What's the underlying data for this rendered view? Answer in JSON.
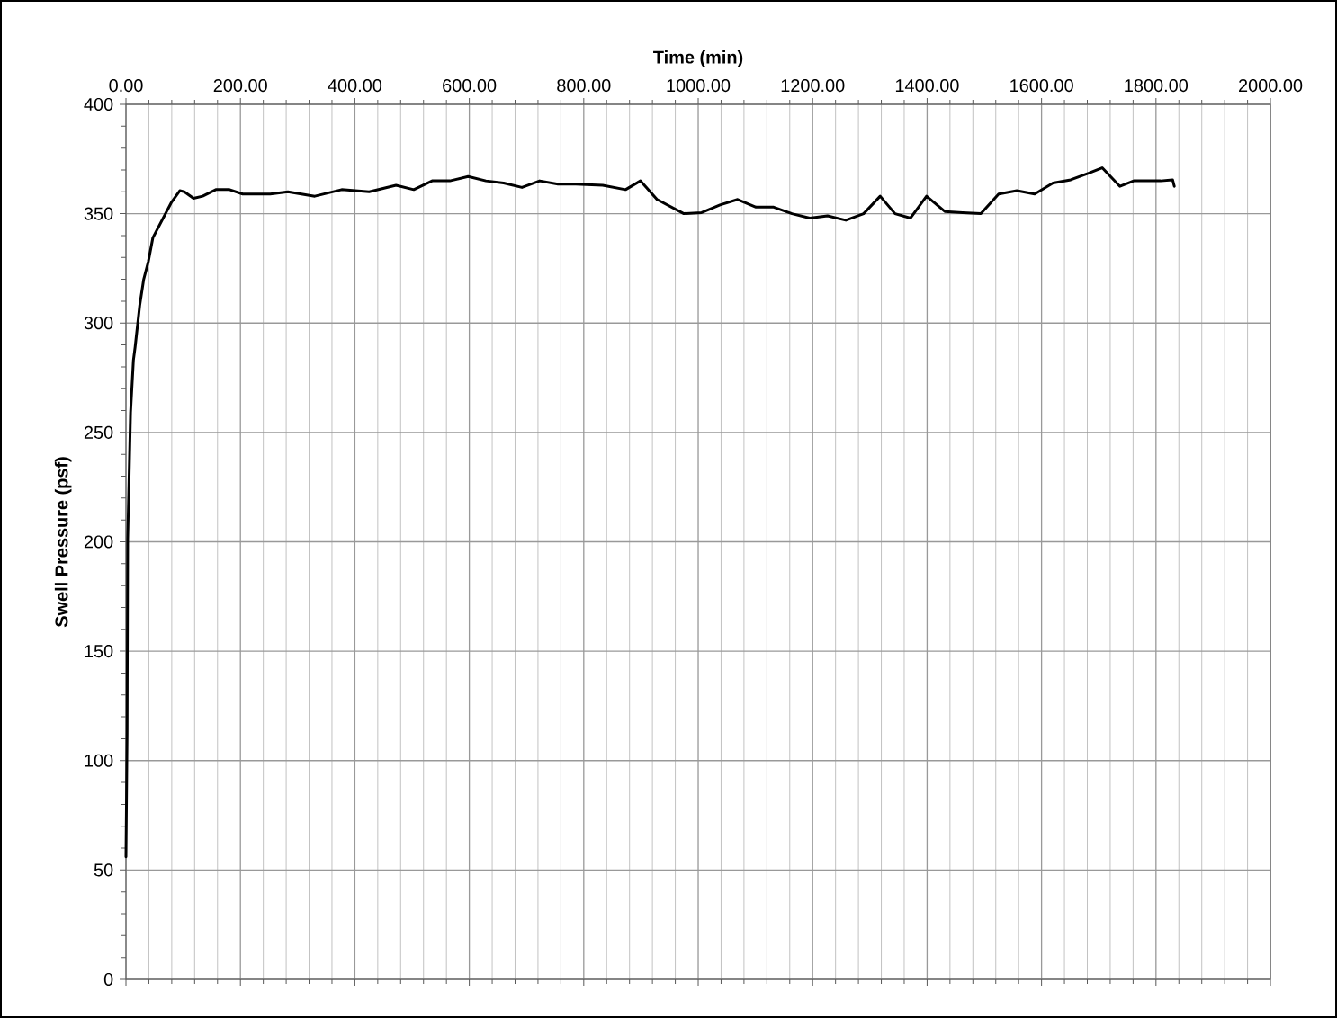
{
  "chart_data": {
    "type": "line",
    "xlabel": "Time (min)",
    "ylabel": "Swell Pressure (psf)",
    "x": [
      0,
      2,
      3,
      8,
      13,
      16,
      24,
      31,
      39,
      47,
      63,
      79,
      94,
      102,
      118,
      134,
      157,
      181,
      204,
      252,
      283,
      330,
      377,
      425,
      472,
      503,
      535,
      566,
      598,
      629,
      660,
      692,
      723,
      755,
      786,
      833,
      873,
      899,
      928,
      975,
      1006,
      1038,
      1069,
      1101,
      1132,
      1164,
      1195,
      1226,
      1258,
      1289,
      1318,
      1344,
      1371,
      1399,
      1431,
      1462,
      1494,
      1525,
      1557,
      1588,
      1620,
      1651,
      1682,
      1706,
      1737,
      1761,
      1808,
      1829,
      1832
    ],
    "series": [
      {
        "color": "#000000",
        "values": [
          56,
          113,
          201,
          259,
          283,
          289,
          308,
          320,
          328,
          339,
          347,
          355,
          360.5,
          360,
          357,
          358,
          361,
          361,
          359,
          359,
          360,
          358,
          361,
          360,
          363,
          361,
          365,
          365,
          367,
          365,
          364,
          362,
          365,
          363.5,
          363.5,
          363,
          361,
          365,
          356.5,
          350,
          350.5,
          354,
          356.5,
          353,
          353,
          350,
          348,
          349,
          347,
          350,
          358,
          350,
          348,
          358,
          351,
          350.5,
          350,
          359,
          360.5,
          359,
          364,
          365.5,
          368.5,
          371,
          362.5,
          365,
          365,
          365.5,
          362.5
        ]
      }
    ],
    "xlim": [
      0,
      2000
    ],
    "xticks": [
      {
        "value": 0,
        "label": "0.00"
      },
      {
        "value": 200,
        "label": "200.00"
      },
      {
        "value": 400,
        "label": "400.00"
      },
      {
        "value": 600,
        "label": "600.00"
      },
      {
        "value": 800,
        "label": "800.00"
      },
      {
        "value": 1000,
        "label": "1000.00"
      },
      {
        "value": 1200,
        "label": "1200.00"
      },
      {
        "value": 1400,
        "label": "1400.00"
      },
      {
        "value": 1600,
        "label": "1600.00"
      },
      {
        "value": 1800,
        "label": "1800.00"
      },
      {
        "value": 2000,
        "label": "2000.00"
      }
    ],
    "ylim": [
      0,
      400
    ],
    "yticks": [
      0,
      50,
      100,
      150,
      200,
      250,
      300,
      350,
      400
    ],
    "grid": true,
    "marker": "none",
    "line_style": "solid"
  }
}
